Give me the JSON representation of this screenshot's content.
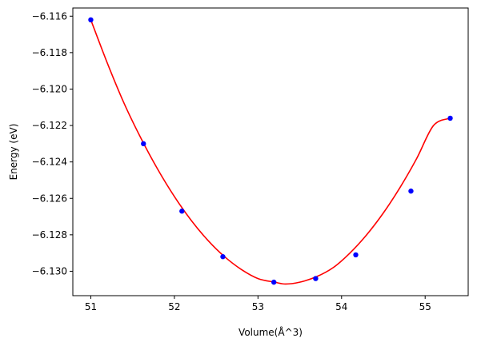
{
  "chart_data": {
    "type": "scatter",
    "title": "",
    "xlabel": "Volume(Å^3)",
    "ylabel": "Energy (eV)",
    "xlim": [
      50.785,
      55.515
    ],
    "ylim": [
      -6.13134,
      -6.11555
    ],
    "x_ticks": [
      51,
      52,
      53,
      54,
      55
    ],
    "x_tick_labels": [
      "51",
      "52",
      "53",
      "54",
      "55"
    ],
    "y_ticks": [
      -6.116,
      -6.118,
      -6.12,
      -6.122,
      -6.124,
      -6.126,
      -6.128,
      -6.13
    ],
    "y_tick_labels": [
      "−6.116",
      "−6.118",
      "−6.120",
      "−6.122",
      "−6.124",
      "−6.126",
      "−6.128",
      "−6.130"
    ],
    "grid": false,
    "series": [
      {
        "kind": "points",
        "color": "#0000ff",
        "x": [
          51.0,
          51.63,
          52.09,
          52.58,
          53.19,
          53.69,
          54.17,
          54.83,
          55.3
        ],
        "y": [
          -6.1162,
          -6.123,
          -6.1267,
          -6.1292,
          -6.1306,
          -6.1304,
          -6.1291,
          -6.1256,
          -6.1216
        ]
      },
      {
        "kind": "fit-curve",
        "color": "#ff0000",
        "x": [
          51.0,
          51.2,
          51.4,
          51.6,
          51.8,
          52.0,
          52.2,
          52.4,
          52.6,
          52.8,
          53.0,
          53.2,
          53.33,
          53.5,
          53.7,
          53.9,
          54.1,
          54.3,
          54.5,
          54.7,
          54.9,
          55.1,
          55.3
        ],
        "y": [
          -6.1162,
          -6.1186,
          -6.1208,
          -6.1227,
          -6.1244,
          -6.1259,
          -6.1272,
          -6.1283,
          -6.1292,
          -6.1299,
          -6.1304,
          -6.1306,
          -6.1307,
          -6.1306,
          -6.1303,
          -6.1298,
          -6.129,
          -6.128,
          -6.1268,
          -6.1254,
          -6.1238,
          -6.122,
          -6.1216
        ]
      }
    ]
  }
}
